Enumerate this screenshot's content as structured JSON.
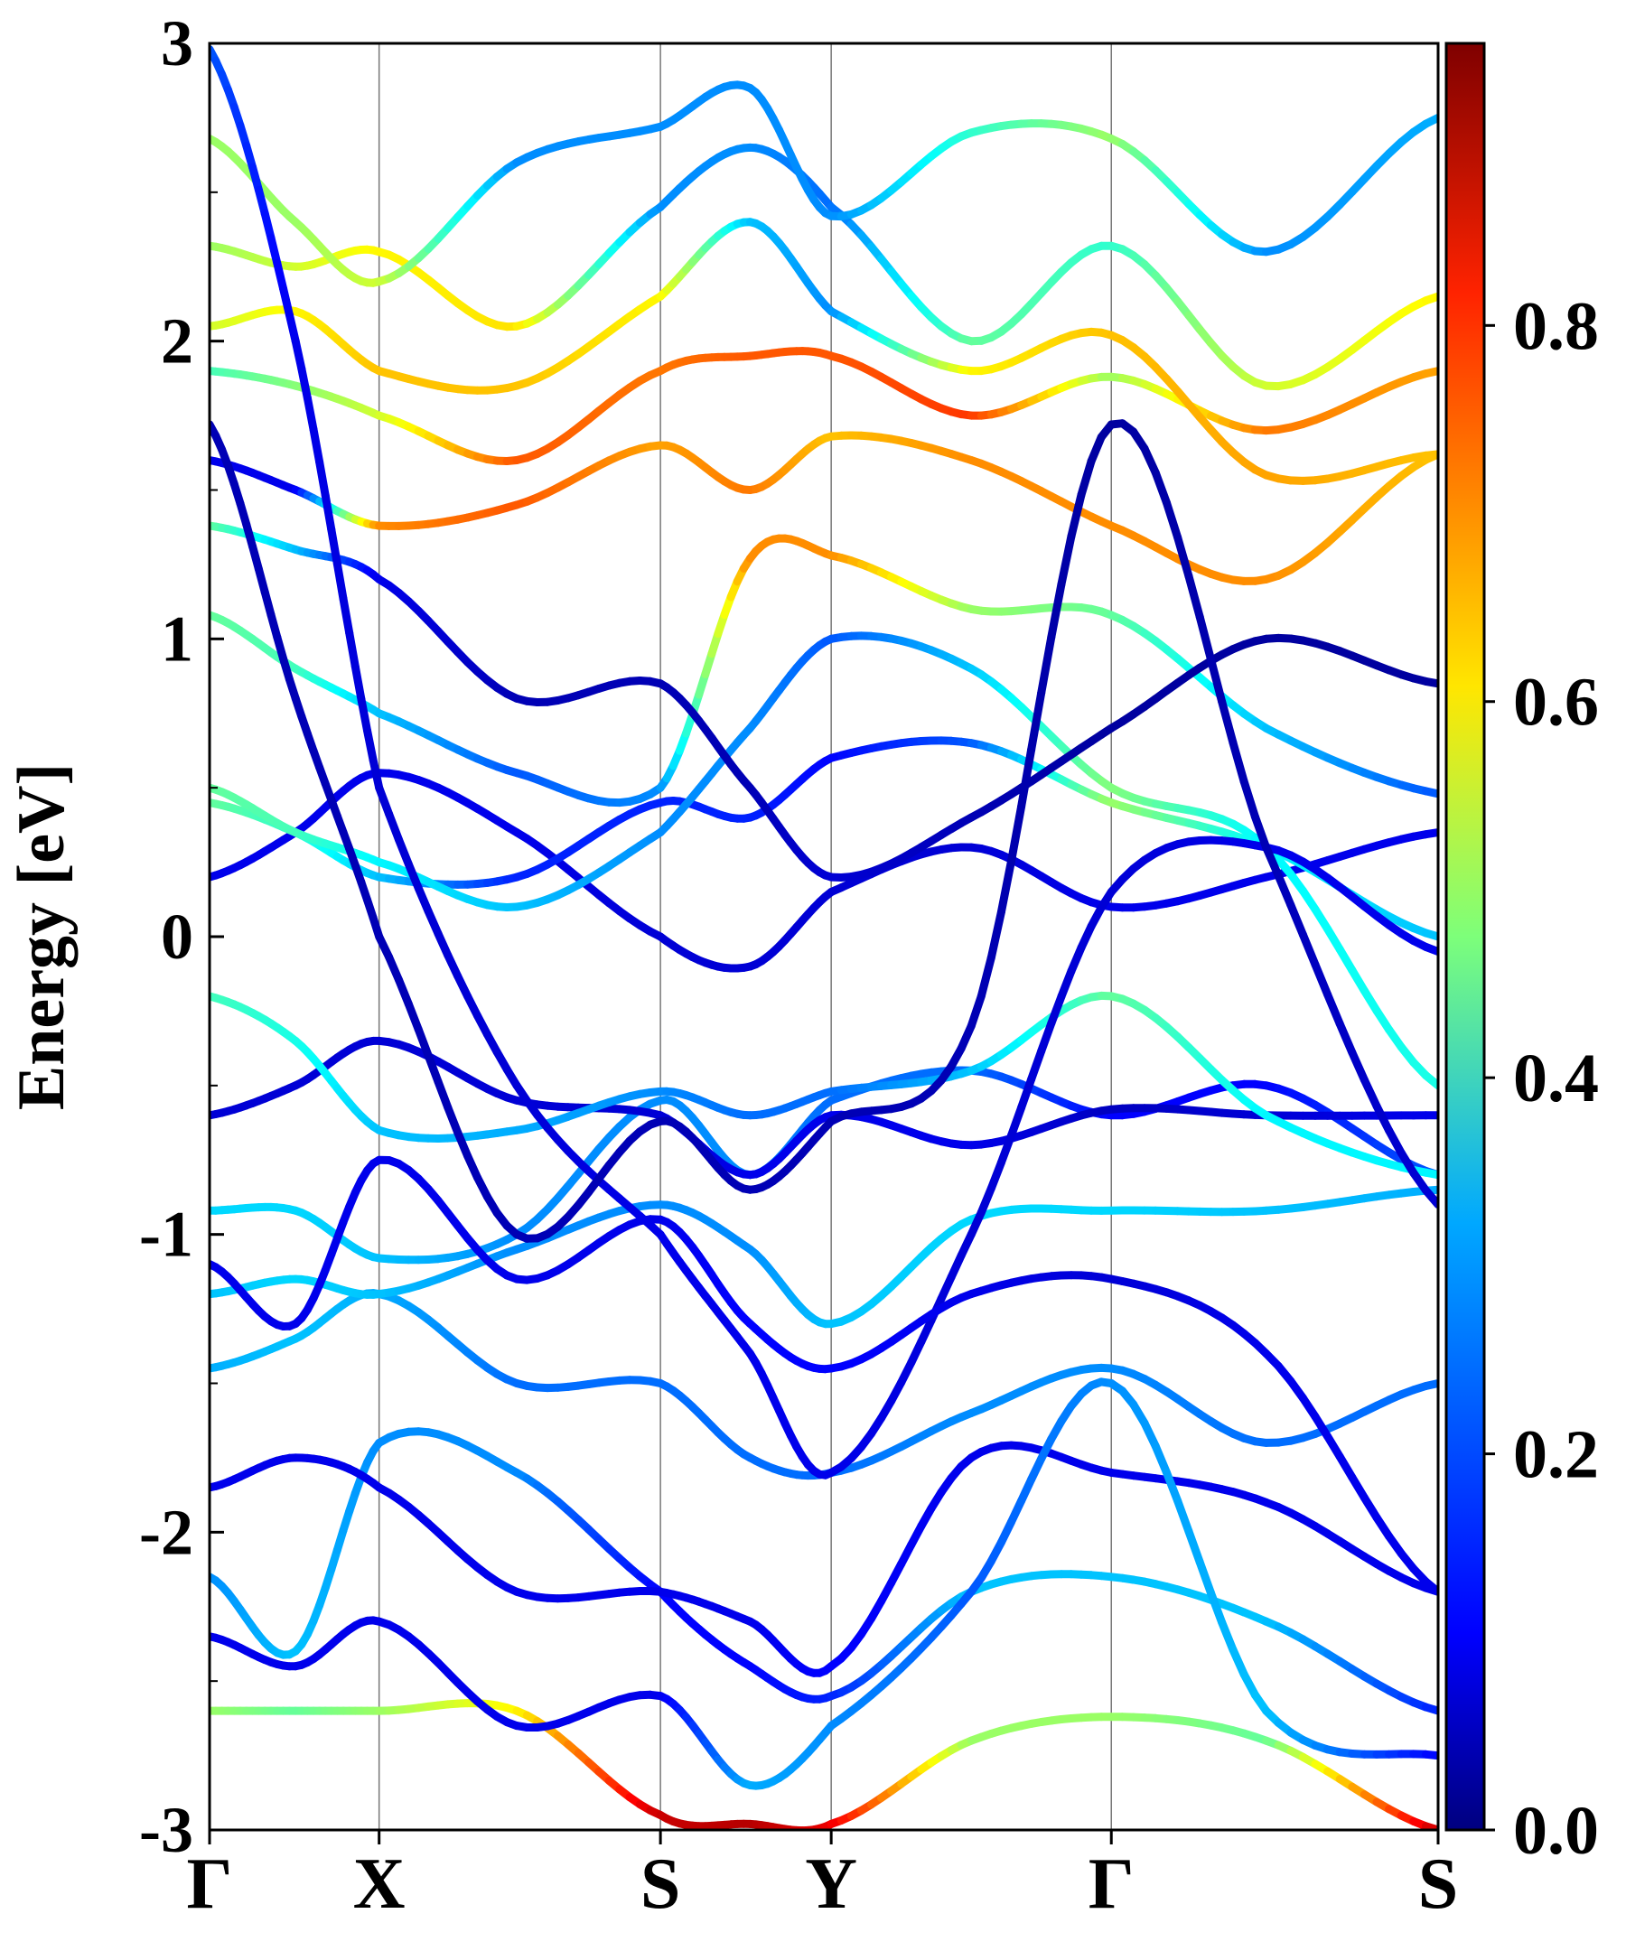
{
  "chart_data": {
    "type": "line",
    "title": "",
    "ylabel": "Energy [eV]",
    "xlabel": "",
    "ylim": [
      -3,
      3
    ],
    "yticks": [
      {
        "value": -3,
        "label": "-3"
      },
      {
        "value": -2,
        "label": "-2"
      },
      {
        "value": -1,
        "label": "-1"
      },
      {
        "value": 0,
        "label": "0"
      },
      {
        "value": 1,
        "label": "1"
      },
      {
        "value": 2,
        "label": "2"
      },
      {
        "value": 3,
        "label": "3"
      }
    ],
    "kpath": [
      {
        "label": "Γ",
        "k": 0.0
      },
      {
        "label": "X",
        "k": 0.138
      },
      {
        "label": "S",
        "k": 0.367
      },
      {
        "label": "Y",
        "k": 0.506
      },
      {
        "label": "Γ",
        "k": 0.734
      },
      {
        "label": "S",
        "k": 1.0
      }
    ],
    "colorbar": {
      "range": [
        0.0,
        0.95
      ],
      "ticks": [
        {
          "value": 0.0,
          "label": "0.0"
        },
        {
          "value": 0.2,
          "label": "0.2"
        },
        {
          "value": 0.4,
          "label": "0.4"
        },
        {
          "value": 0.6,
          "label": "0.6"
        },
        {
          "value": 0.8,
          "label": "0.8"
        }
      ],
      "colormap": "jet"
    },
    "series": [
      {
        "name": "band-1",
        "k": [
          0,
          0.07,
          0.138,
          0.25,
          0.367,
          0.44,
          0.506,
          0.62,
          0.734,
          0.86,
          1.0
        ],
        "energy": [
          -2.6,
          -2.6,
          -2.6,
          -2.6,
          -2.95,
          -2.98,
          -2.98,
          -2.7,
          -2.62,
          -2.7,
          -3.0
        ],
        "weight": [
          0.5,
          0.45,
          0.5,
          0.6,
          0.88,
          0.9,
          0.85,
          0.5,
          0.5,
          0.45,
          0.88
        ]
      },
      {
        "name": "band-2",
        "k": [
          0,
          0.07,
          0.138,
          0.25,
          0.367,
          0.44,
          0.506,
          0.62,
          0.734,
          0.86,
          1.0
        ],
        "energy": [
          -2.15,
          -2.4,
          -1.7,
          -1.8,
          -2.2,
          -2.45,
          -2.55,
          -2.2,
          -2.15,
          -2.3,
          -2.6
        ],
        "weight": [
          0.25,
          0.3,
          0.25,
          0.25,
          0.12,
          0.12,
          0.15,
          0.3,
          0.3,
          0.3,
          0.15
        ]
      },
      {
        "name": "band-3",
        "k": [
          0,
          0.07,
          0.138,
          0.25,
          0.367,
          0.44,
          0.506,
          0.62,
          0.734,
          0.86,
          1.0
        ],
        "energy": [
          -1.85,
          -1.75,
          -1.85,
          -2.2,
          -2.2,
          -2.3,
          -2.45,
          -1.75,
          -1.8,
          -1.9,
          -2.2
        ],
        "weight": [
          0.1,
          0.1,
          0.1,
          0.1,
          0.1,
          0.1,
          0.12,
          0.1,
          0.1,
          0.1,
          0.1
        ]
      },
      {
        "name": "band-4",
        "k": [
          0,
          0.07,
          0.138,
          0.25,
          0.367,
          0.44,
          0.506,
          0.62,
          0.734,
          0.86,
          1.0
        ],
        "energy": [
          -1.45,
          -1.35,
          -1.2,
          -1.5,
          -1.5,
          -1.75,
          -1.8,
          -1.6,
          -1.45,
          -1.7,
          -1.5
        ],
        "weight": [
          0.28,
          0.3,
          0.28,
          0.22,
          0.22,
          0.22,
          0.22,
          0.25,
          0.25,
          0.22,
          0.22
        ]
      },
      {
        "name": "band-5",
        "k": [
          0,
          0.07,
          0.138,
          0.25,
          0.367,
          0.44,
          0.506,
          0.62,
          0.734,
          0.86,
          1.0
        ],
        "energy": [
          -1.2,
          -1.15,
          -1.2,
          -1.05,
          -0.9,
          -1.05,
          -1.3,
          -0.95,
          -0.92,
          -0.92,
          -0.85
        ],
        "weight": [
          0.3,
          0.32,
          0.3,
          0.25,
          0.25,
          0.25,
          0.3,
          0.32,
          0.32,
          0.3,
          0.28
        ]
      },
      {
        "name": "band-6",
        "k": [
          0,
          0.07,
          0.138,
          0.25,
          0.367,
          0.44,
          0.506,
          0.62,
          0.734,
          0.86,
          1.0
        ],
        "energy": [
          -0.92,
          -0.92,
          -1.08,
          -1.0,
          -0.55,
          -0.8,
          -0.55,
          -0.45,
          -0.6,
          -0.5,
          -0.8
        ],
        "weight": [
          0.32,
          0.32,
          0.3,
          0.25,
          0.25,
          0.25,
          0.22,
          0.22,
          0.12,
          0.12,
          0.2
        ]
      },
      {
        "name": "band-7",
        "k": [
          0,
          0.07,
          0.138,
          0.25,
          0.367,
          0.44,
          0.506,
          0.62,
          0.734,
          0.86,
          1.0
        ],
        "energy": [
          -0.6,
          -0.5,
          -0.35,
          -0.55,
          -0.6,
          -0.8,
          -0.6,
          -0.7,
          -0.58,
          -0.6,
          -0.6
        ],
        "weight": [
          0.08,
          0.08,
          0.08,
          0.08,
          0.08,
          0.1,
          0.1,
          0.1,
          0.06,
          0.08,
          0.1
        ]
      },
      {
        "name": "band-8",
        "k": [
          0,
          0.07,
          0.138,
          0.25,
          0.367,
          0.44,
          0.506,
          0.62,
          0.734,
          0.86,
          1.0
        ],
        "energy": [
          -0.2,
          -0.35,
          -0.65,
          -0.65,
          -0.52,
          -0.6,
          -0.52,
          -0.45,
          -0.2,
          -0.6,
          -0.8
        ],
        "weight": [
          0.42,
          0.38,
          0.3,
          0.28,
          0.25,
          0.22,
          0.22,
          0.3,
          0.45,
          0.35,
          0.35
        ]
      },
      {
        "name": "band-9",
        "k": [
          0,
          0.07,
          0.138,
          0.25,
          0.367,
          0.44,
          0.506,
          0.62,
          0.734,
          0.86,
          1.0
        ],
        "energy": [
          0.2,
          0.35,
          0.55,
          0.35,
          0.0,
          -0.1,
          0.15,
          0.3,
          0.1,
          0.2,
          0.35
        ],
        "weight": [
          0.1,
          0.1,
          0.1,
          0.1,
          0.08,
          0.08,
          0.08,
          0.08,
          0.1,
          0.1,
          0.1
        ]
      },
      {
        "name": "band-10",
        "k": [
          0,
          0.07,
          0.138,
          0.25,
          0.367,
          0.44,
          0.506,
          0.62,
          0.734,
          0.86,
          1.0
        ],
        "energy": [
          0.45,
          0.35,
          0.2,
          0.2,
          0.45,
          0.4,
          0.6,
          0.65,
          0.45,
          0.3,
          0.0
        ],
        "weight": [
          0.45,
          0.4,
          0.3,
          0.15,
          0.15,
          0.15,
          0.12,
          0.2,
          0.5,
          0.35,
          0.3
        ]
      },
      {
        "name": "band-11",
        "k": [
          0,
          0.07,
          0.138,
          0.25,
          0.367,
          0.44,
          0.506,
          0.62,
          0.734,
          0.86,
          1.0
        ],
        "energy": [
          0.5,
          0.35,
          0.25,
          0.1,
          0.35,
          0.7,
          1.0,
          0.9,
          0.5,
          0.3,
          -0.5
        ],
        "weight": [
          0.45,
          0.42,
          0.35,
          0.3,
          0.25,
          0.25,
          0.2,
          0.3,
          0.48,
          0.35,
          0.38
        ]
      },
      {
        "name": "band-12",
        "k": [
          0,
          0.07,
          0.138,
          0.25,
          0.367,
          0.44,
          0.506,
          0.62,
          0.734,
          0.86,
          1.0
        ],
        "energy": [
          1.08,
          0.9,
          0.75,
          0.55,
          0.5,
          1.27,
          1.28,
          1.1,
          1.08,
          0.7,
          0.48
        ],
        "weight": [
          0.45,
          0.42,
          0.3,
          0.2,
          0.25,
          0.7,
          0.7,
          0.5,
          0.45,
          0.3,
          0.2
        ]
      },
      {
        "name": "band-13",
        "k": [
          0,
          0.07,
          0.138,
          0.25,
          0.367,
          0.44,
          0.506,
          0.62,
          0.734,
          0.86,
          1.0
        ],
        "energy": [
          1.38,
          1.3,
          1.2,
          0.8,
          0.85,
          0.5,
          0.2,
          0.4,
          0.7,
          1.0,
          0.85
        ],
        "weight": [
          0.45,
          0.3,
          0.1,
          0.05,
          0.05,
          0.05,
          0.08,
          0.05,
          0.03,
          0.03,
          0.03
        ]
      },
      {
        "name": "band-14",
        "k": [
          0,
          0.07,
          0.138,
          0.25,
          0.367,
          0.44,
          0.506,
          0.62,
          0.734,
          0.86,
          1.0
        ],
        "energy": [
          1.6,
          1.5,
          1.38,
          1.45,
          1.65,
          1.5,
          1.68,
          1.6,
          1.38,
          1.2,
          1.62
        ],
        "weight": [
          0.1,
          0.1,
          0.7,
          0.75,
          0.68,
          0.72,
          0.65,
          0.7,
          0.7,
          0.7,
          0.65
        ]
      },
      {
        "name": "band-15",
        "k": [
          0,
          0.07,
          0.138,
          0.25,
          0.367,
          0.44,
          0.506,
          0.62,
          0.734,
          0.86,
          1.0
        ],
        "energy": [
          1.9,
          1.85,
          1.75,
          1.6,
          1.9,
          1.95,
          1.95,
          1.75,
          1.88,
          1.7,
          1.9
        ],
        "weight": [
          0.42,
          0.48,
          0.55,
          0.75,
          0.72,
          0.75,
          0.75,
          0.78,
          0.5,
          0.72,
          0.68
        ]
      },
      {
        "name": "band-16",
        "k": [
          0,
          0.07,
          0.138,
          0.25,
          0.367,
          0.44,
          0.506,
          0.62,
          0.734,
          0.86,
          1.0
        ],
        "energy": [
          2.05,
          2.1,
          1.9,
          1.85,
          2.15,
          2.4,
          2.1,
          1.9,
          2.02,
          1.55,
          1.62
        ],
        "weight": [
          0.55,
          0.6,
          0.65,
          0.65,
          0.6,
          0.3,
          0.25,
          0.6,
          0.65,
          0.68,
          0.65
        ]
      },
      {
        "name": "band-17",
        "k": [
          0,
          0.07,
          0.138,
          0.25,
          0.367,
          0.44,
          0.506,
          0.62,
          0.734,
          0.86,
          1.0
        ],
        "energy": [
          2.32,
          2.25,
          2.3,
          2.05,
          2.45,
          2.65,
          2.45,
          2.0,
          2.32,
          1.85,
          2.15
        ],
        "weight": [
          0.5,
          0.55,
          0.6,
          0.62,
          0.25,
          0.25,
          0.22,
          0.45,
          0.4,
          0.55,
          0.6
        ]
      },
      {
        "name": "band-18",
        "k": [
          0,
          0.07,
          0.138,
          0.25,
          0.367,
          0.44,
          0.506,
          0.62,
          0.734,
          0.86,
          1.0
        ],
        "energy": [
          2.68,
          2.4,
          2.2,
          2.6,
          2.72,
          2.85,
          2.42,
          2.7,
          2.68,
          2.3,
          2.75
        ],
        "weight": [
          0.5,
          0.5,
          0.55,
          0.25,
          0.25,
          0.25,
          0.25,
          0.4,
          0.5,
          0.25,
          0.28
        ]
      },
      {
        "name": "band-19",
        "k": [
          0,
          0.07,
          0.138,
          0.25,
          0.367,
          0.44,
          0.506,
          0.62,
          0.734,
          0.86,
          1.0
        ],
        "energy": [
          2.98,
          2.0,
          0.5,
          -0.5,
          -1.0,
          -1.4,
          -1.8,
          -1.0,
          0.15,
          0.3,
          -0.05
        ],
        "weight": [
          0.2,
          0.1,
          0.08,
          0.08,
          0.1,
          0.1,
          0.1,
          0.08,
          0.08,
          0.1,
          0.1
        ]
      },
      {
        "name": "band-20",
        "k": [
          0,
          0.07,
          0.138,
          0.25,
          0.367,
          0.44,
          0.506,
          0.62,
          0.734,
          0.86,
          1.0
        ],
        "energy": [
          1.72,
          0.8,
          0.0,
          -1.0,
          -0.62,
          -0.85,
          -0.62,
          -0.3,
          1.72,
          0.3,
          -0.9
        ],
        "weight": [
          0.05,
          0.05,
          0.05,
          0.05,
          0.05,
          0.05,
          0.05,
          0.05,
          0.03,
          0.05,
          0.08
        ]
      },
      {
        "name": "band-21",
        "k": [
          0,
          0.07,
          0.138,
          0.25,
          0.367,
          0.44,
          0.506,
          0.62,
          0.734,
          0.86,
          1.0
        ],
        "energy": [
          -1.1,
          -1.3,
          -0.75,
          -1.15,
          -0.95,
          -1.3,
          -1.45,
          -1.2,
          -1.15,
          -1.4,
          -2.2
        ],
        "weight": [
          0.1,
          0.1,
          0.1,
          0.1,
          0.1,
          0.12,
          0.12,
          0.1,
          0.08,
          0.1,
          0.1
        ]
      },
      {
        "name": "band-22",
        "k": [
          0,
          0.07,
          0.138,
          0.25,
          0.367,
          0.44,
          0.506,
          0.62,
          0.734,
          0.86,
          1.0
        ],
        "energy": [
          -2.35,
          -2.45,
          -2.3,
          -2.65,
          -2.55,
          -2.85,
          -2.65,
          -2.2,
          -1.5,
          -2.6,
          -2.75
        ],
        "weight": [
          0.1,
          0.1,
          0.1,
          0.1,
          0.1,
          0.28,
          0.25,
          0.2,
          0.25,
          0.3,
          0.12
        ]
      }
    ]
  }
}
